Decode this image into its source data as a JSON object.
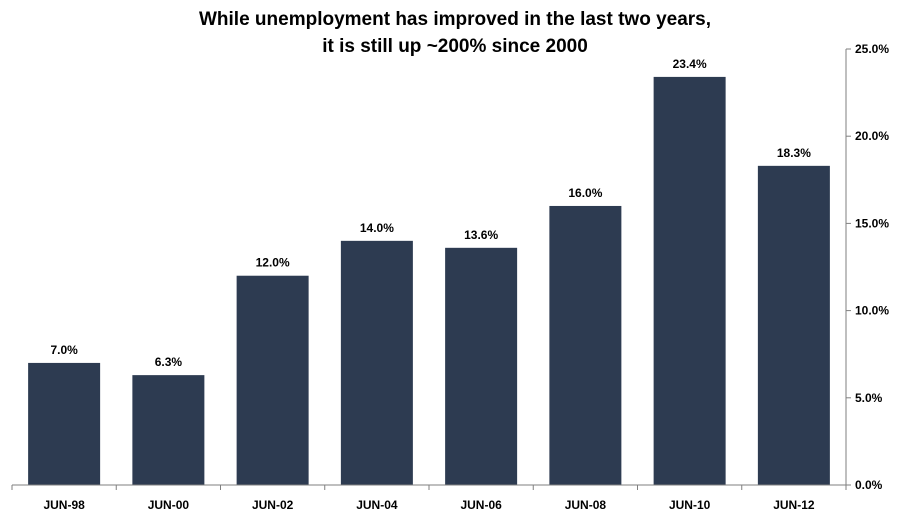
{
  "chart_data": {
    "type": "bar",
    "title_lines": [
      "While unemployment has improved in the last two years,",
      "it is still up ~200% since 2000"
    ],
    "categories": [
      "JUN-98",
      "JUN-00",
      "JUN-02",
      "JUN-04",
      "JUN-06",
      "JUN-08",
      "JUN-10",
      "JUN-12"
    ],
    "values": [
      7.0,
      6.3,
      12.0,
      14.0,
      13.6,
      16.0,
      23.4,
      18.3
    ],
    "value_labels": [
      "7.0%",
      "6.3%",
      "12.0%",
      "14.0%",
      "13.6%",
      "16.0%",
      "23.4%",
      "18.3%"
    ],
    "y_ticks": [
      0,
      5,
      10,
      15,
      20,
      25
    ],
    "y_tick_labels": [
      "0.0%",
      "5.0%",
      "10.0%",
      "15.0%",
      "20.0%",
      "25.0%"
    ],
    "ylim": [
      0,
      25
    ],
    "y_axis_side": "right",
    "grid": false,
    "legend": "none",
    "colors": {
      "bar": "#2d3b51",
      "axis": "#7f7f7f",
      "text": "#000000"
    }
  }
}
